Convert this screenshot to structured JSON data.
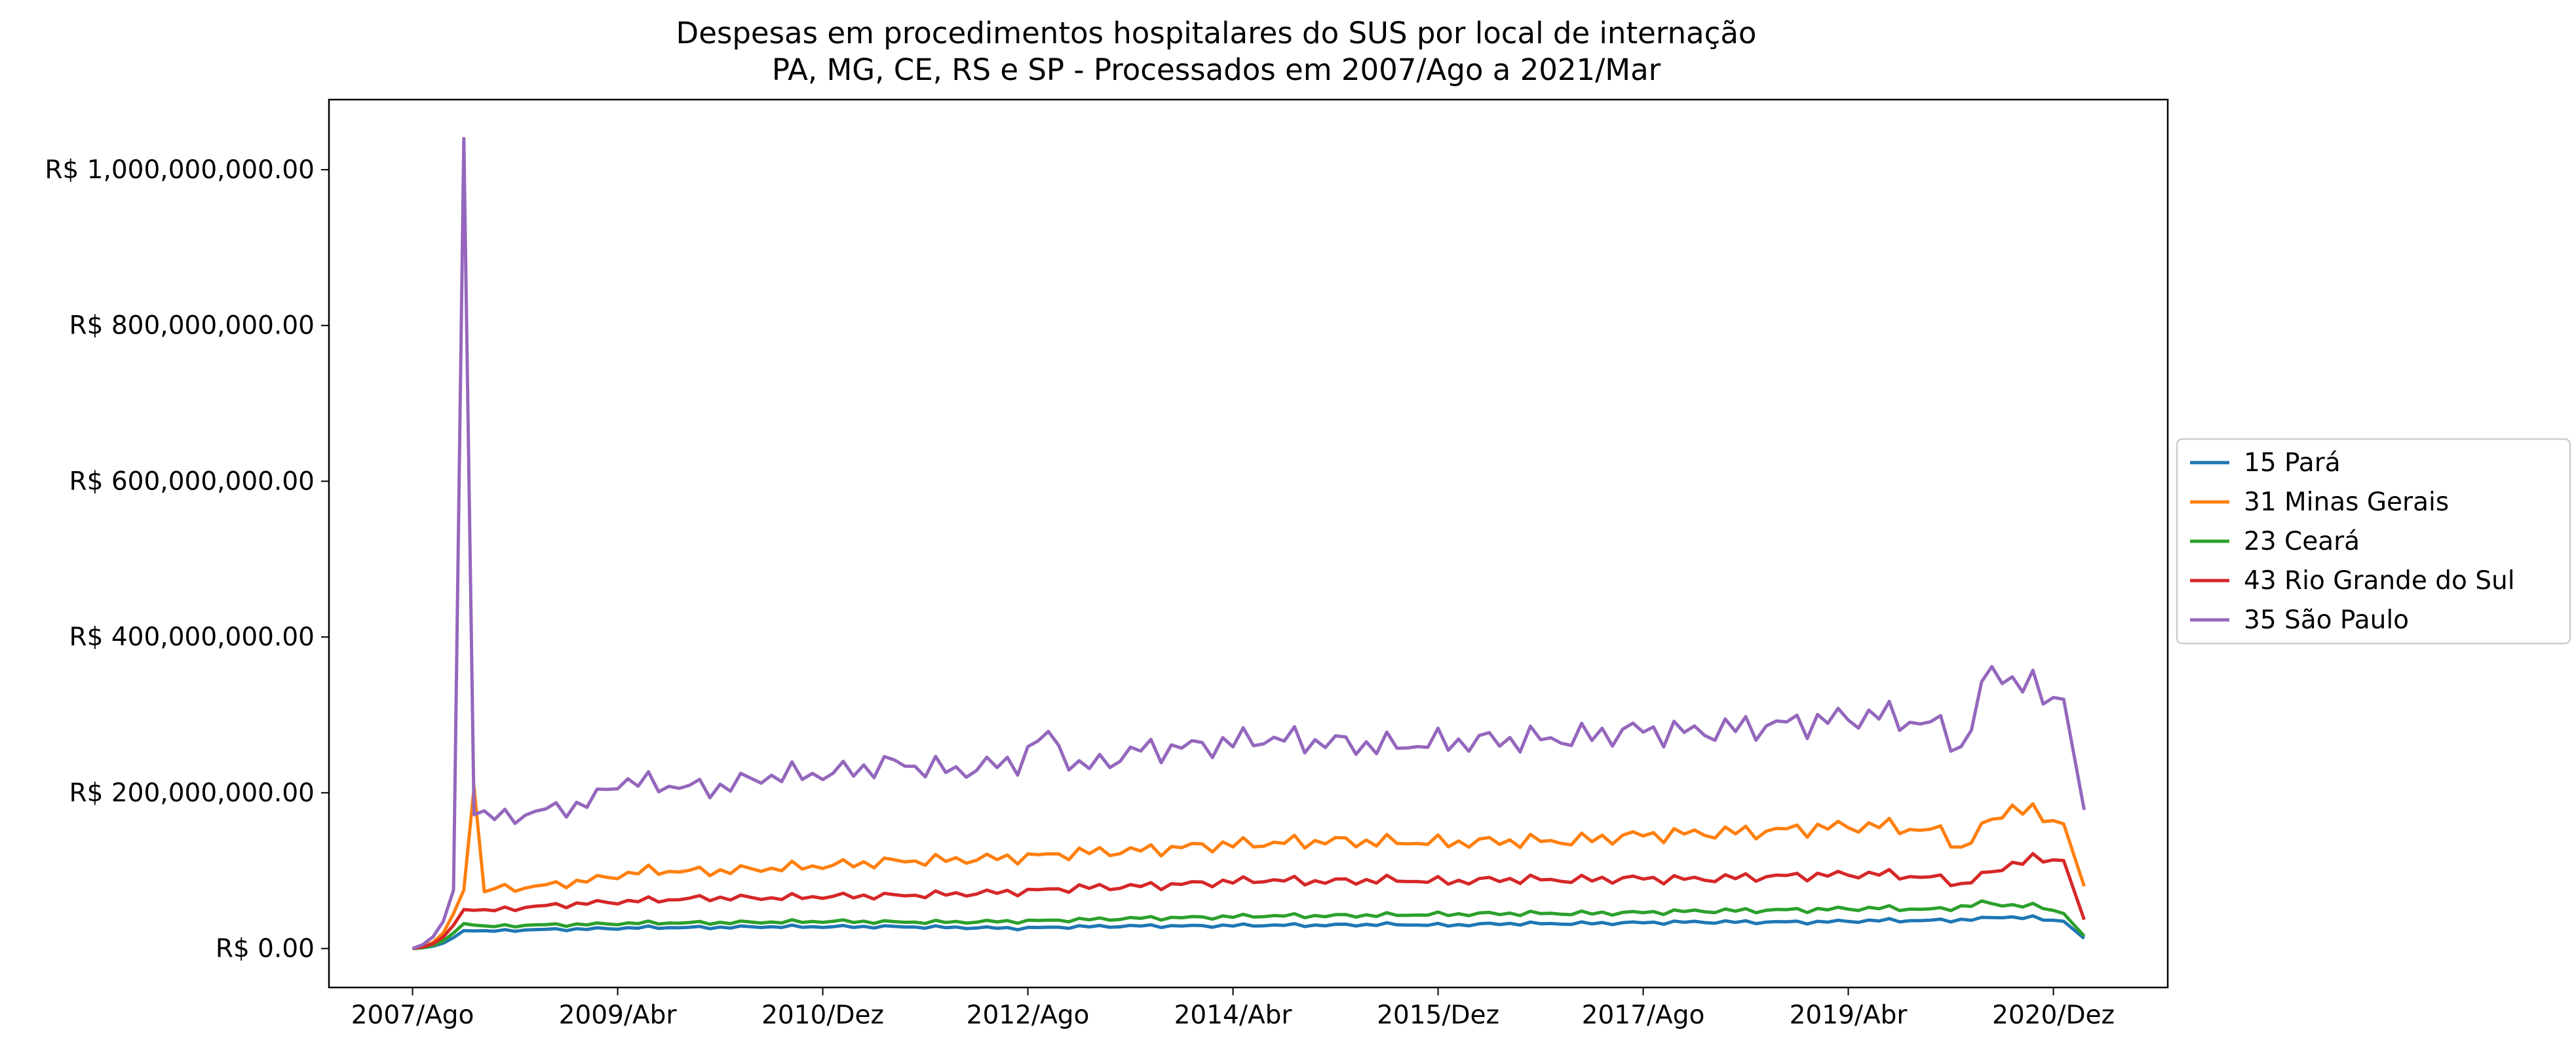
{
  "chart_data": {
    "type": "line",
    "title": "Despesas em procedimentos hospitalares do SUS por local de internação",
    "subtitle": "PA, MG, CE, RS e SP - Processados em 2007/Ago a 2021/Mar",
    "xlabel": "",
    "ylabel": "",
    "x_start": "2007/Ago",
    "x_end": "2021/Mar",
    "x_tick_labels": [
      "2007/Ago",
      "2009/Abr",
      "2010/Dez",
      "2012/Ago",
      "2014/Abr",
      "2015/Dez",
      "2017/Ago",
      "2019/Abr",
      "2020/Dez"
    ],
    "y_tick_labels": [
      "R$ 0.00",
      "R$ 200,000,000.00",
      "R$ 400,000,000.00",
      "R$ 600,000,000.00",
      "R$ 800,000,000.00",
      "R$ 1,000,000,000.00"
    ],
    "y_ticks": [
      0,
      200000000,
      400000000,
      600000000,
      800000000,
      1000000000
    ],
    "ylim": [
      -50000000,
      1090000000
    ],
    "grid": false,
    "legend_position": "right",
    "series": [
      {
        "name": "15 Pará",
        "color": "#1f77b4",
        "keypoints": [
          [
            "2007/Ago",
            0
          ],
          [
            "2007/Set",
            1000000
          ],
          [
            "2007/Out",
            3000000
          ],
          [
            "2007/Nov",
            7000000
          ],
          [
            "2007/Dez",
            14000000
          ],
          [
            "2008/Jan",
            23000000
          ],
          [
            "2008/Mar",
            22000000
          ],
          [
            "2008/Jul",
            24000000
          ],
          [
            "2009/Jan",
            25000000
          ],
          [
            "2009/Jul",
            27000000
          ],
          [
            "2010/Jan",
            27000000
          ],
          [
            "2010/Jul",
            28000000
          ],
          [
            "2011/Jan",
            28000000
          ],
          [
            "2011/Jul",
            28000000
          ],
          [
            "2012/Jan",
            27000000
          ],
          [
            "2012/Jul",
            26000000
          ],
          [
            "2013/Jan",
            28000000
          ],
          [
            "2013/Jul",
            29000000
          ],
          [
            "2014/Jan",
            29000000
          ],
          [
            "2014/Jul",
            30000000
          ],
          [
            "2015/Jan",
            30000000
          ],
          [
            "2015/Jul",
            31000000
          ],
          [
            "2016/Jan",
            30000000
          ],
          [
            "2016/Jul",
            32000000
          ],
          [
            "2017/Jan",
            32000000
          ],
          [
            "2017/Jul",
            33000000
          ],
          [
            "2018/Jan",
            34000000
          ],
          [
            "2018/Jul",
            34000000
          ],
          [
            "2019/Jan",
            34000000
          ],
          [
            "2019/Jul",
            36000000
          ],
          [
            "2020/Jan",
            36000000
          ],
          [
            "2020/Mai",
            38000000
          ],
          [
            "2020/Jul",
            41000000
          ],
          [
            "2020/Out",
            39000000
          ],
          [
            "2021/Jan",
            35000000
          ],
          [
            "2021/Mar",
            13000000
          ]
        ]
      },
      {
        "name": "31 Minas Gerais",
        "color": "#ff7f0e",
        "keypoints": [
          [
            "2007/Ago",
            0
          ],
          [
            "2007/Set",
            2000000
          ],
          [
            "2007/Out",
            8000000
          ],
          [
            "2007/Nov",
            20000000
          ],
          [
            "2007/Dez",
            45000000
          ],
          [
            "2008/Jan",
            75000000
          ],
          [
            "2008/Fev",
            207000000
          ],
          [
            "2008/Mar",
            70000000
          ],
          [
            "2008/Abr",
            78000000
          ],
          [
            "2008/Jul",
            78000000
          ],
          [
            "2009/Jan",
            87000000
          ],
          [
            "2009/Abr",
            94000000
          ],
          [
            "2009/Jul",
            100000000
          ],
          [
            "2010/Jan",
            99000000
          ],
          [
            "2010/Jul",
            103000000
          ],
          [
            "2011/Jan",
            107000000
          ],
          [
            "2011/Jul",
            112000000
          ],
          [
            "2012/Jan",
            114000000
          ],
          [
            "2012/Jul",
            117000000
          ],
          [
            "2013/Jan",
            123000000
          ],
          [
            "2013/Jul",
            126000000
          ],
          [
            "2014/Jan",
            132000000
          ],
          [
            "2014/Jul",
            135000000
          ],
          [
            "2015/Jan",
            138000000
          ],
          [
            "2015/Jul",
            137000000
          ],
          [
            "2016/Jan",
            136000000
          ],
          [
            "2016/Jul",
            138000000
          ],
          [
            "2017/Jan",
            138000000
          ],
          [
            "2017/Jul",
            145000000
          ],
          [
            "2018/Jan",
            148000000
          ],
          [
            "2018/Jul",
            150000000
          ],
          [
            "2019/Jan",
            155000000
          ],
          [
            "2019/Jul",
            158000000
          ],
          [
            "2020/Jan",
            150000000
          ],
          [
            "2020/Mar",
            128000000
          ],
          [
            "2020/Jun",
            165000000
          ],
          [
            "2020/Ago",
            183000000
          ],
          [
            "2020/Out",
            173000000
          ],
          [
            "2021/Jan",
            160000000
          ],
          [
            "2021/Mar",
            80000000
          ]
        ]
      },
      {
        "name": "23 Ceará",
        "color": "#2ca02c",
        "keypoints": [
          [
            "2007/Ago",
            0
          ],
          [
            "2007/Set",
            1000000
          ],
          [
            "2007/Out",
            4000000
          ],
          [
            "2007/Nov",
            10000000
          ],
          [
            "2007/Dez",
            20000000
          ],
          [
            "2008/Jan",
            32000000
          ],
          [
            "2008/Mar",
            28000000
          ],
          [
            "2008/Jul",
            30000000
          ],
          [
            "2009/Jan",
            31000000
          ],
          [
            "2009/Jul",
            33000000
          ],
          [
            "2010/Jan",
            33000000
          ],
          [
            "2010/Jul",
            34000000
          ],
          [
            "2011/Jan",
            35000000
          ],
          [
            "2011/Jul",
            34000000
          ],
          [
            "2012/Jan",
            34000000
          ],
          [
            "2012/Jul",
            35000000
          ],
          [
            "2013/Jan",
            37000000
          ],
          [
            "2013/Jul",
            39000000
          ],
          [
            "2014/Jan",
            40000000
          ],
          [
            "2014/Jul",
            42000000
          ],
          [
            "2015/Jan",
            42000000
          ],
          [
            "2015/Jul",
            43000000
          ],
          [
            "2016/Jan",
            44000000
          ],
          [
            "2016/Jul",
            45000000
          ],
          [
            "2017/Jan",
            45000000
          ],
          [
            "2017/Jul",
            46000000
          ],
          [
            "2018/Jan",
            48000000
          ],
          [
            "2018/Jul",
            49000000
          ],
          [
            "2019/Jan",
            50000000
          ],
          [
            "2019/Jul",
            52000000
          ],
          [
            "2020/Jan",
            50000000
          ],
          [
            "2020/Mai",
            58000000
          ],
          [
            "2020/Ago",
            56000000
          ],
          [
            "2020/Nov",
            53000000
          ],
          [
            "2021/Jan",
            45000000
          ],
          [
            "2021/Mar",
            16000000
          ]
        ]
      },
      {
        "name": "43 Rio Grande do Sul",
        "color": "#d62728",
        "keypoints": [
          [
            "2007/Ago",
            0
          ],
          [
            "2007/Set",
            2000000
          ],
          [
            "2007/Out",
            6000000
          ],
          [
            "2007/Nov",
            15000000
          ],
          [
            "2007/Dez",
            30000000
          ],
          [
            "2008/Jan",
            50000000
          ],
          [
            "2008/Mar",
            48000000
          ],
          [
            "2008/Jul",
            53000000
          ],
          [
            "2009/Jan",
            58000000
          ],
          [
            "2009/Jul",
            62000000
          ],
          [
            "2010/Jan",
            65000000
          ],
          [
            "2010/Jul",
            65000000
          ],
          [
            "2011/Jan",
            67000000
          ],
          [
            "2011/Jul",
            68000000
          ],
          [
            "2012/Jan",
            70000000
          ],
          [
            "2012/Jul",
            73000000
          ],
          [
            "2013/Jan",
            78000000
          ],
          [
            "2013/Jul",
            80000000
          ],
          [
            "2014/Jan",
            84000000
          ],
          [
            "2014/Jul",
            88000000
          ],
          [
            "2015/Jan",
            86000000
          ],
          [
            "2015/Jul",
            88000000
          ],
          [
            "2016/Jan",
            86000000
          ],
          [
            "2016/Jul",
            89000000
          ],
          [
            "2017/Jan",
            88000000
          ],
          [
            "2017/Jul",
            90000000
          ],
          [
            "2018/Jan",
            89000000
          ],
          [
            "2018/Jul",
            92000000
          ],
          [
            "2019/Jan",
            94000000
          ],
          [
            "2019/Jul",
            96000000
          ],
          [
            "2020/Jan",
            90000000
          ],
          [
            "2020/Mar",
            82000000
          ],
          [
            "2020/Jun",
            98000000
          ],
          [
            "2020/Ago",
            110000000
          ],
          [
            "2020/Nov",
            115000000
          ],
          [
            "2021/Jan",
            113000000
          ],
          [
            "2021/Mar",
            37000000
          ]
        ]
      },
      {
        "name": "35 São Paulo",
        "color": "#9467bd",
        "keypoints": [
          [
            "2007/Ago",
            0
          ],
          [
            "2007/Set",
            5000000
          ],
          [
            "2007/Out",
            15000000
          ],
          [
            "2007/Nov",
            35000000
          ],
          [
            "2007/Dez",
            75000000
          ],
          [
            "2008/Jan",
            1040000000
          ],
          [
            "2008/Fev",
            172000000
          ],
          [
            "2008/Abr",
            168000000
          ],
          [
            "2008/Jul",
            172000000
          ],
          [
            "2008/Out",
            180000000
          ],
          [
            "2009/Jan",
            185000000
          ],
          [
            "2009/Abr",
            215000000
          ],
          [
            "2009/Jul",
            212000000
          ],
          [
            "2010/Jan",
            205000000
          ],
          [
            "2010/Jul",
            222000000
          ],
          [
            "2011/Jan",
            225000000
          ],
          [
            "2011/Jul",
            238000000
          ],
          [
            "2012/Jan",
            228000000
          ],
          [
            "2012/Jul",
            240000000
          ],
          [
            "2012/Out",
            275000000
          ],
          [
            "2013/Jan",
            230000000
          ],
          [
            "2013/Jul",
            255000000
          ],
          [
            "2014/Jan",
            260000000
          ],
          [
            "2014/Jul",
            270000000
          ],
          [
            "2015/Jan",
            265000000
          ],
          [
            "2015/Jul",
            260000000
          ],
          [
            "2016/Jan",
            265000000
          ],
          [
            "2016/Jul",
            268000000
          ],
          [
            "2017/Jan",
            270000000
          ],
          [
            "2017/Jul",
            280000000
          ],
          [
            "2018/Jan",
            278000000
          ],
          [
            "2018/Jul",
            285000000
          ],
          [
            "2019/Jan",
            292000000
          ],
          [
            "2019/Jul",
            300000000
          ],
          [
            "2020/Jan",
            285000000
          ],
          [
            "2020/Mar",
            255000000
          ],
          [
            "2020/Jun",
            360000000
          ],
          [
            "2020/Set",
            340000000
          ],
          [
            "2020/Nov",
            325000000
          ],
          [
            "2021/Jan",
            320000000
          ],
          [
            "2021/Mar",
            178000000
          ]
        ]
      }
    ]
  }
}
